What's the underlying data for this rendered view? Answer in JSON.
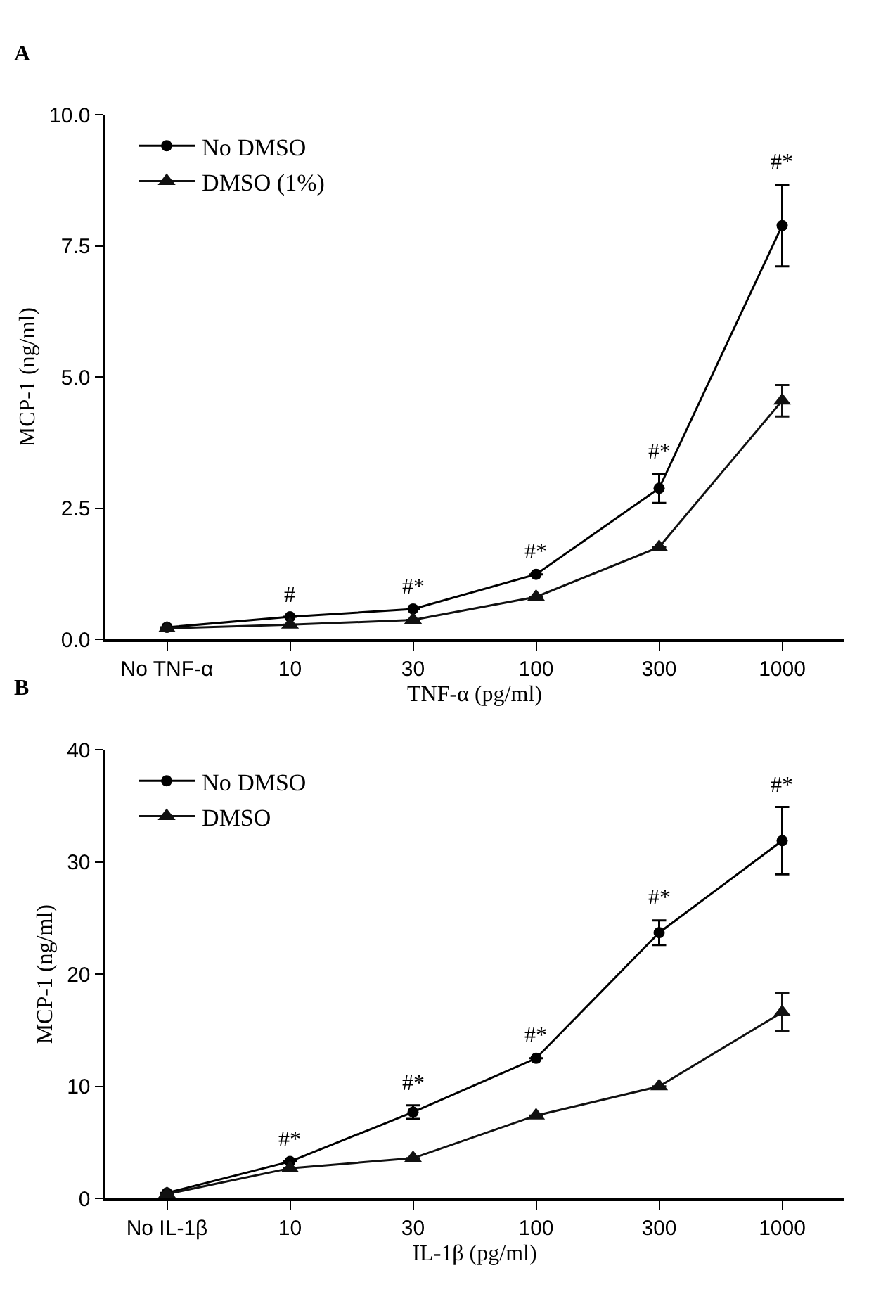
{
  "chart_data": [
    {
      "type": "line",
      "title": "A",
      "xlabel": "TNF-α (pg/ml)",
      "ylabel": "MCP-1 (ng/ml)",
      "categories": [
        "No TNF-α",
        "10",
        "30",
        "100",
        "300",
        "1000"
      ],
      "ylim": [
        0,
        10
      ],
      "yticks": [
        {
          "value": 0,
          "label": "0.0"
        },
        {
          "value": 2.5,
          "label": "2.5"
        },
        {
          "value": 5,
          "label": "5.0"
        },
        {
          "value": 7.5,
          "label": "7.5"
        },
        {
          "value": 10,
          "label": "10.0"
        }
      ],
      "series": [
        {
          "name": "No DMSO",
          "color": "#000000",
          "marker": "circle",
          "values": [
            0.23,
            0.43,
            0.58,
            1.24,
            2.88,
            7.89
          ],
          "errors": [
            null,
            null,
            null,
            null,
            0.28,
            0.78
          ]
        },
        {
          "name": "DMSO (1%)",
          "color": "#111111",
          "marker": "triangle",
          "values": [
            0.21,
            0.28,
            0.37,
            0.81,
            1.76,
            4.55
          ],
          "errors": [
            null,
            null,
            null,
            null,
            null,
            0.3
          ]
        }
      ],
      "annotations": [
        {
          "text": "#",
          "x": "10",
          "y": 0.43
        },
        {
          "text": "#*",
          "x": "30",
          "y": 0.58
        },
        {
          "text": "#*",
          "x": "100",
          "y": 1.24
        },
        {
          "text": "#*",
          "x": "300",
          "y": 3.16
        },
        {
          "text": "#*",
          "x": "1000",
          "y": 8.67
        }
      ],
      "legend": "top left",
      "line_style": "solid"
    },
    {
      "type": "line",
      "title": "B",
      "xlabel": "IL-1β (pg/ml)",
      "ylabel": "MCP-1 (ng/ml)",
      "categories": [
        "No IL-1β",
        "10",
        "30",
        "100",
        "300",
        "1000"
      ],
      "ylim": [
        0,
        40
      ],
      "yticks": [
        0,
        10,
        20,
        30,
        40
      ],
      "series": [
        {
          "name": "No DMSO",
          "color": "#000000",
          "marker": "circle",
          "values": [
            0.5,
            3.3,
            7.7,
            12.5,
            23.7,
            31.9
          ],
          "errors": [
            null,
            null,
            0.6,
            null,
            1.1,
            3.0
          ]
        },
        {
          "name": "DMSO",
          "color": "#111111",
          "marker": "triangle",
          "values": [
            0.4,
            2.7,
            3.6,
            7.4,
            10.0,
            16.6
          ],
          "errors": [
            null,
            null,
            null,
            null,
            null,
            1.7
          ]
        }
      ],
      "annotations": [
        {
          "text": "#*",
          "x": "10",
          "y": 3.3
        },
        {
          "text": "#*",
          "x": "30",
          "y": 8.3
        },
        {
          "text": "#*",
          "x": "100",
          "y": 12.5
        },
        {
          "text": "#*",
          "x": "300",
          "y": 24.8
        },
        {
          "text": "#*",
          "x": "1000",
          "y": 34.9
        }
      ],
      "legend": "top left",
      "line_style": "solid"
    }
  ]
}
